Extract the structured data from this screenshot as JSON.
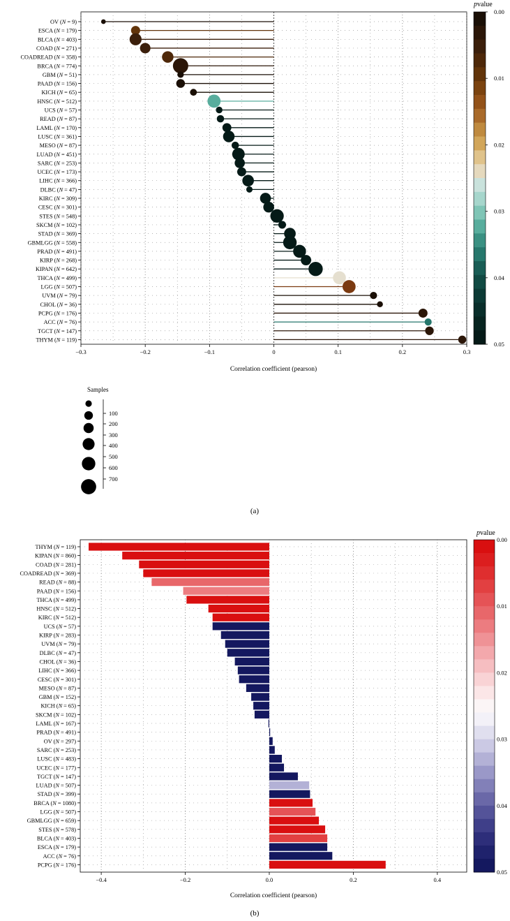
{
  "chart_data": [
    {
      "type": "lollipop",
      "panel_label": "(a)",
      "xlabel": "Correlation coefficient (pearson)",
      "xlim": [
        -0.3,
        0.3
      ],
      "xticks": [
        "−0.3",
        "−0.2",
        "−0.1",
        "0",
        "0.1",
        "0.2",
        "0.3"
      ],
      "xtick_values": [
        -0.3,
        -0.2,
        -0.1,
        0,
        0.1,
        0.2,
        0.3
      ],
      "colorbar": {
        "title_italic": "p",
        "title_rest": "value",
        "ticks": [
          "0.00",
          "0.01",
          "0.02",
          "0.03",
          "0.04",
          "0.05"
        ],
        "tick_values": [
          0,
          0.01,
          0.02,
          0.03,
          0.04,
          0.05
        ],
        "palette": [
          "#1a0f06",
          "#2b1608",
          "#3b1f0b",
          "#4e2809",
          "#62340a",
          "#7b430f",
          "#935219",
          "#a96a2a",
          "#bf8a3f",
          "#d2a65a",
          "#e0c38b",
          "#e5d9bd",
          "#c9e2dc",
          "#a6d6cc",
          "#7fc5b6",
          "#58ad9d",
          "#3a9082",
          "#26776c",
          "#195d55",
          "#114a43",
          "#0c3a35",
          "#092e2a",
          "#072420",
          "#051a17"
        ]
      },
      "size_legend": {
        "title": "Samples",
        "labels": [
          "100",
          "200",
          "300",
          "400",
          "500",
          "600",
          "700"
        ],
        "values": [
          100,
          200,
          300,
          400,
          500,
          600,
          700
        ]
      },
      "series": [
        {
          "cancer": "OV",
          "n": "9",
          "value": -0.265,
          "color": "#1a0f06"
        },
        {
          "cancer": "ESCA",
          "n": "179",
          "value": -0.215,
          "color": "#62340a"
        },
        {
          "cancer": "BLCA",
          "n": "403",
          "value": -0.215,
          "color": "#3b1f0b"
        },
        {
          "cancer": "COAD",
          "n": "271",
          "value": -0.2,
          "color": "#3b1f0b"
        },
        {
          "cancer": "COADREAD",
          "n": "358",
          "value": -0.165,
          "color": "#4e2809"
        },
        {
          "cancer": "BRCA",
          "n": "774",
          "value": -0.145,
          "color": "#2b1608"
        },
        {
          "cancer": "GBM",
          "n": "51",
          "value": -0.145,
          "color": "#1a0f06"
        },
        {
          "cancer": "PAAD",
          "n": "156",
          "value": -0.145,
          "color": "#1a0f06"
        },
        {
          "cancer": "KICH",
          "n": "65",
          "value": -0.125,
          "color": "#1a0f06"
        },
        {
          "cancer": "HNSC",
          "n": "512",
          "value": -0.093,
          "color": "#58ad9d"
        },
        {
          "cancer": "UCS",
          "n": "57",
          "value": -0.085,
          "color": "#051a17"
        },
        {
          "cancer": "READ",
          "n": "87",
          "value": -0.083,
          "color": "#051a17"
        },
        {
          "cancer": "LAML",
          "n": "170",
          "value": -0.073,
          "color": "#051a17"
        },
        {
          "cancer": "LUSC",
          "n": "361",
          "value": -0.07,
          "color": "#051a17"
        },
        {
          "cancer": "MESO",
          "n": "87",
          "value": -0.06,
          "color": "#051a17"
        },
        {
          "cancer": "LUAD",
          "n": "451",
          "value": -0.055,
          "color": "#051a17"
        },
        {
          "cancer": "SARC",
          "n": "253",
          "value": -0.053,
          "color": "#051a17"
        },
        {
          "cancer": "UCEC",
          "n": "173",
          "value": -0.05,
          "color": "#051a17"
        },
        {
          "cancer": "LIHC",
          "n": "366",
          "value": -0.04,
          "color": "#051a17"
        },
        {
          "cancer": "DLBC",
          "n": "47",
          "value": -0.038,
          "color": "#051a17"
        },
        {
          "cancer": "KIRC",
          "n": "309",
          "value": -0.013,
          "color": "#051a17"
        },
        {
          "cancer": "CESC",
          "n": "301",
          "value": -0.008,
          "color": "#051a17"
        },
        {
          "cancer": "STES",
          "n": "548",
          "value": 0.005,
          "color": "#051a17"
        },
        {
          "cancer": "SKCM",
          "n": "102",
          "value": 0.013,
          "color": "#051a17"
        },
        {
          "cancer": "STAD",
          "n": "369",
          "value": 0.025,
          "color": "#051a17"
        },
        {
          "cancer": "GBMLGG",
          "n": "558",
          "value": 0.025,
          "color": "#051a17"
        },
        {
          "cancer": "PRAD",
          "n": "491",
          "value": 0.04,
          "color": "#051a17"
        },
        {
          "cancer": "KIRP",
          "n": "268",
          "value": 0.05,
          "color": "#051a17"
        },
        {
          "cancer": "KIPAN",
          "n": "642",
          "value": 0.065,
          "color": "#051a17"
        },
        {
          "cancer": "THCA",
          "n": "499",
          "value": 0.102,
          "color": "#e5dfcf"
        },
        {
          "cancer": "LGG",
          "n": "507",
          "value": 0.117,
          "color": "#7b3a10"
        },
        {
          "cancer": "UVM",
          "n": "79",
          "value": 0.155,
          "color": "#1a0f06"
        },
        {
          "cancer": "CHOL",
          "n": "36",
          "value": 0.165,
          "color": "#1a0f06"
        },
        {
          "cancer": "PCPG",
          "n": "176",
          "value": 0.232,
          "color": "#2b1608"
        },
        {
          "cancer": "ACC",
          "n": "76",
          "value": 0.24,
          "color": "#26776c"
        },
        {
          "cancer": "TGCT",
          "n": "147",
          "value": 0.242,
          "color": "#2b1608"
        },
        {
          "cancer": "THYM",
          "n": "119",
          "value": 0.293,
          "color": "#2b1608"
        }
      ]
    },
    {
      "type": "bar",
      "orientation": "horizontal",
      "panel_label": "(b)",
      "xlabel": "Correlation coefficient (pearson)",
      "xlim": [
        -0.45,
        0.47
      ],
      "xticks": [
        "−0.4",
        "−0.2",
        "0.0",
        "0.2",
        "0.4"
      ],
      "xtick_values": [
        -0.4,
        -0.2,
        0,
        0.2,
        0.4
      ],
      "colorbar": {
        "title_italic": "p",
        "title_rest": "value",
        "ticks": [
          "0.00",
          "0.01",
          "0.02",
          "0.03",
          "0.04",
          "0.05"
        ],
        "tick_values": [
          0,
          0.01,
          0.02,
          0.03,
          0.04,
          0.05
        ],
        "palette": [
          "#d90f10",
          "#dc1e1f",
          "#df2e2f",
          "#e24041",
          "#e55356",
          "#e8676a",
          "#ec7c80",
          "#ef9296",
          "#f3a8ac",
          "#f6bec1",
          "#f9d3d5",
          "#fbe6e7",
          "#fbf5f6",
          "#f3f1f8",
          "#e0dfef",
          "#cbc9e4",
          "#b3b1d6",
          "#9a98c8",
          "#8280b8",
          "#6a68a8",
          "#545399",
          "#3f3f89",
          "#2d2e7a",
          "#1f226c",
          "#14185f"
        ]
      },
      "series": [
        {
          "cancer": "THYM",
          "n": "119",
          "value": -0.43,
          "color": "#d90f10"
        },
        {
          "cancer": "KIPAN",
          "n": "860",
          "value": -0.35,
          "color": "#d90f10"
        },
        {
          "cancer": "COAD",
          "n": "281",
          "value": -0.31,
          "color": "#d90f10"
        },
        {
          "cancer": "COADREAD",
          "n": "369",
          "value": -0.3,
          "color": "#d90f10"
        },
        {
          "cancer": "READ",
          "n": "88",
          "value": -0.28,
          "color": "#e8676a"
        },
        {
          "cancer": "PAAD",
          "n": "156",
          "value": -0.205,
          "color": "#ec7c80"
        },
        {
          "cancer": "THCA",
          "n": "499",
          "value": -0.197,
          "color": "#d90f10"
        },
        {
          "cancer": "HNSC",
          "n": "512",
          "value": -0.145,
          "color": "#d90f10"
        },
        {
          "cancer": "KIRC",
          "n": "512",
          "value": -0.135,
          "color": "#d90f10"
        },
        {
          "cancer": "UCS",
          "n": "57",
          "value": -0.135,
          "color": "#14185f"
        },
        {
          "cancer": "KIRP",
          "n": "283",
          "value": -0.115,
          "color": "#14185f"
        },
        {
          "cancer": "UVM",
          "n": "79",
          "value": -0.105,
          "color": "#14185f"
        },
        {
          "cancer": "DLBC",
          "n": "47",
          "value": -0.1,
          "color": "#14185f"
        },
        {
          "cancer": "CHOL",
          "n": "36",
          "value": -0.082,
          "color": "#14185f"
        },
        {
          "cancer": "LIHC",
          "n": "366",
          "value": -0.075,
          "color": "#14185f"
        },
        {
          "cancer": "CESC",
          "n": "301",
          "value": -0.072,
          "color": "#14185f"
        },
        {
          "cancer": "MESO",
          "n": "87",
          "value": -0.055,
          "color": "#14185f"
        },
        {
          "cancer": "GBM",
          "n": "152",
          "value": -0.043,
          "color": "#14185f"
        },
        {
          "cancer": "KICH",
          "n": "65",
          "value": -0.038,
          "color": "#14185f"
        },
        {
          "cancer": "SKCM",
          "n": "102",
          "value": -0.035,
          "color": "#14185f"
        },
        {
          "cancer": "LAML",
          "n": "167",
          "value": -0.002,
          "color": "#14185f"
        },
        {
          "cancer": "PRAD",
          "n": "491",
          "value": 0.002,
          "color": "#14185f"
        },
        {
          "cancer": "OV",
          "n": "297",
          "value": 0.008,
          "color": "#14185f"
        },
        {
          "cancer": "SARC",
          "n": "253",
          "value": 0.013,
          "color": "#14185f"
        },
        {
          "cancer": "LUSC",
          "n": "483",
          "value": 0.03,
          "color": "#14185f"
        },
        {
          "cancer": "UCEC",
          "n": "177",
          "value": 0.035,
          "color": "#14185f"
        },
        {
          "cancer": "TGCT",
          "n": "147",
          "value": 0.068,
          "color": "#14185f"
        },
        {
          "cancer": "LUAD",
          "n": "507",
          "value": 0.095,
          "color": "#b3b1d6"
        },
        {
          "cancer": "STAD",
          "n": "399",
          "value": 0.097,
          "color": "#14185f"
        },
        {
          "cancer": "BRCA",
          "n": "1080",
          "value": 0.103,
          "color": "#d90f10"
        },
        {
          "cancer": "LGG",
          "n": "507",
          "value": 0.11,
          "color": "#e55356"
        },
        {
          "cancer": "GBMLGG",
          "n": "659",
          "value": 0.118,
          "color": "#d90f10"
        },
        {
          "cancer": "STES",
          "n": "578",
          "value": 0.133,
          "color": "#d90f10"
        },
        {
          "cancer": "BLCA",
          "n": "403",
          "value": 0.138,
          "color": "#e24041"
        },
        {
          "cancer": "ESCA",
          "n": "179",
          "value": 0.138,
          "color": "#14185f"
        },
        {
          "cancer": "ACC",
          "n": "76",
          "value": 0.15,
          "color": "#14185f"
        },
        {
          "cancer": "PCPG",
          "n": "176",
          "value": 0.277,
          "color": "#d90f10"
        }
      ]
    }
  ]
}
